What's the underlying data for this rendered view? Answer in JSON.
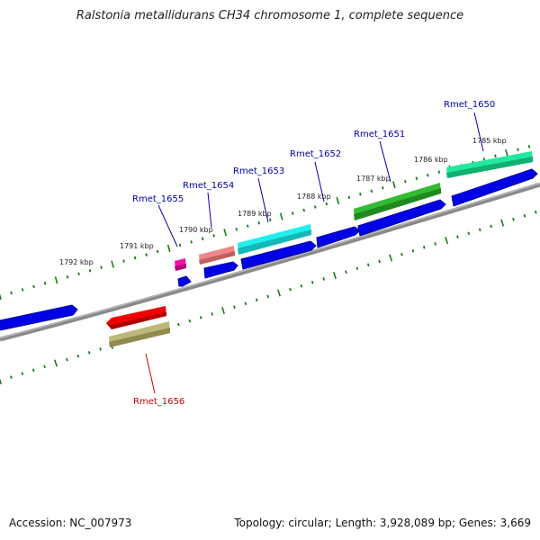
{
  "title": "Ralstonia metallidurans CH34 chromosome 1, complete sequence",
  "footer": {
    "accession": "Accession: NC_007973",
    "topology": "Topology: circular; Length: 3,928,089 bp; Genes: 3,669"
  },
  "colors": {
    "backbone": "#808080",
    "tick": "#1a7a1a",
    "label_forward": "#0000aa",
    "label_reverse": "#cc0000",
    "blue_gene": "#0000e6"
  },
  "ticks": [
    "1785 kbp",
    "1786 kbp",
    "1787 kbp",
    "1788 kbp",
    "1789 kbp",
    "1790 kbp",
    "1791 kbp",
    "1792 kbp"
  ],
  "genes": [
    {
      "name": "Rmet_1650",
      "color": "#22e8a0",
      "label_color": "#0000aa"
    },
    {
      "name": "Rmet_1651",
      "color": "#33bb33",
      "label_color": "#0000aa"
    },
    {
      "name": "Rmet_1652",
      "color": "#0000e6",
      "label_color": "#0000aa"
    },
    {
      "name": "Rmet_1653",
      "color": "#22eeee",
      "label_color": "#0000aa"
    },
    {
      "name": "Rmet_1654",
      "color": "#ee8888",
      "label_color": "#0000aa"
    },
    {
      "name": "Rmet_1655",
      "color": "#ee11aa",
      "label_color": "#0000aa"
    },
    {
      "name": "Rmet_1656",
      "color": "#ee0000",
      "label_color": "#cc0000"
    }
  ]
}
